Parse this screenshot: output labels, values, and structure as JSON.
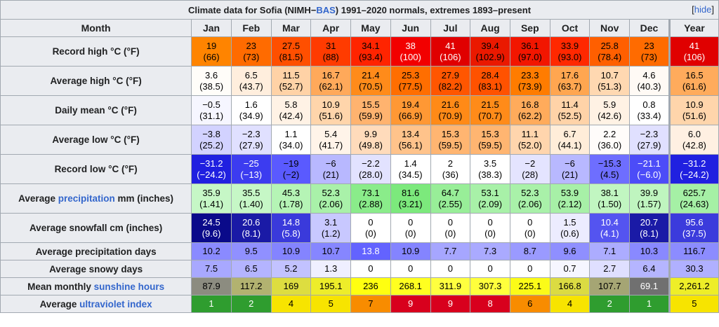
{
  "caption": {
    "prefix": "Climate data for Sofia (NIMH−",
    "link": "BAS",
    "suffix": ") 1991–2020 normals, extremes 1893–present",
    "hide_open": "[",
    "hide_label": "hide",
    "hide_close": "]"
  },
  "header": {
    "month_label": "Month",
    "months": [
      "Jan",
      "Feb",
      "Mar",
      "Apr",
      "May",
      "Jun",
      "Jul",
      "Aug",
      "Sep",
      "Oct",
      "Nov",
      "Dec"
    ],
    "year_label": "Year"
  },
  "rows": [
    {
      "label_pre": "Record high °C (°F)",
      "label_link": "",
      "label_post": "",
      "kind": "tall",
      "cells": [
        {
          "v": "19",
          "s": "(66)",
          "bg": "#ff8400",
          "fg": "#000000"
        },
        {
          "v": "23",
          "s": "(73)",
          "bg": "#ff6b00",
          "fg": "#000000"
        },
        {
          "v": "27.5",
          "s": "(81.5)",
          "bg": "#ff4f00",
          "fg": "#000000"
        },
        {
          "v": "31",
          "s": "(88)",
          "bg": "#ff3b00",
          "fg": "#000000"
        },
        {
          "v": "34.1",
          "s": "(93.4)",
          "bg": "#ff2400",
          "fg": "#000000"
        },
        {
          "v": "38",
          "s": "(100)",
          "bg": "#f20000",
          "fg": "#ffffff"
        },
        {
          "v": "41",
          "s": "(106)",
          "bg": "#e00000",
          "fg": "#ffffff"
        },
        {
          "v": "39.4",
          "s": "(102.9)",
          "bg": "#ea1900",
          "fg": "#000000"
        },
        {
          "v": "36.1",
          "s": "(97.0)",
          "bg": "#f21600",
          "fg": "#000000"
        },
        {
          "v": "33.9",
          "s": "(93.0)",
          "bg": "#ff2800",
          "fg": "#000000"
        },
        {
          "v": "25.8",
          "s": "(78.4)",
          "bg": "#ff5f00",
          "fg": "#000000"
        },
        {
          "v": "23",
          "s": "(73)",
          "bg": "#ff6b00",
          "fg": "#000000"
        },
        {
          "v": "41",
          "s": "(106)",
          "bg": "#e00000",
          "fg": "#ffffff"
        }
      ]
    },
    {
      "label_pre": "Average high °C (°F)",
      "label_link": "",
      "label_post": "",
      "kind": "tall",
      "cells": [
        {
          "v": "3.6",
          "s": "(38.5)",
          "bg": "#fffdf9",
          "fg": "#000000"
        },
        {
          "v": "6.5",
          "s": "(43.7)",
          "bg": "#ffeedd",
          "fg": "#000000"
        },
        {
          "v": "11.5",
          "s": "(52.7)",
          "bg": "#ffd2a6",
          "fg": "#000000"
        },
        {
          "v": "16.7",
          "s": "(62.1)",
          "bg": "#ffa95a",
          "fg": "#000000"
        },
        {
          "v": "21.4",
          "s": "(70.5)",
          "bg": "#ff8b1a",
          "fg": "#000000"
        },
        {
          "v": "25.3",
          "s": "(77.5)",
          "bg": "#ff6e00",
          "fg": "#000000"
        },
        {
          "v": "27.9",
          "s": "(82.2)",
          "bg": "#ff5600",
          "fg": "#000000"
        },
        {
          "v": "28.4",
          "s": "(83.1)",
          "bg": "#ff5200",
          "fg": "#000000"
        },
        {
          "v": "23.3",
          "s": "(73.9)",
          "bg": "#ff7c00",
          "fg": "#000000"
        },
        {
          "v": "17.6",
          "s": "(63.7)",
          "bg": "#ffa650",
          "fg": "#000000"
        },
        {
          "v": "10.7",
          "s": "(51.3)",
          "bg": "#ffd8b1",
          "fg": "#000000"
        },
        {
          "v": "4.6",
          "s": "(40.3)",
          "bg": "#fffaf5",
          "fg": "#000000"
        },
        {
          "v": "16.5",
          "s": "(61.6)",
          "bg": "#ffab5c",
          "fg": "#000000"
        }
      ]
    },
    {
      "label_pre": "Daily mean °C (°F)",
      "label_link": "",
      "label_post": "",
      "kind": "tall",
      "cells": [
        {
          "v": "−0.5",
          "s": "(31.1)",
          "bg": "#f6f6ff",
          "fg": "#000000"
        },
        {
          "v": "1.6",
          "s": "(34.9)",
          "bg": "#ffffff",
          "fg": "#000000"
        },
        {
          "v": "5.8",
          "s": "(42.4)",
          "bg": "#fff2e5",
          "fg": "#000000"
        },
        {
          "v": "10.9",
          "s": "(51.6)",
          "bg": "#ffd5ab",
          "fg": "#000000"
        },
        {
          "v": "15.5",
          "s": "(59.9)",
          "bg": "#ffb36f",
          "fg": "#000000"
        },
        {
          "v": "19.4",
          "s": "(66.9)",
          "bg": "#ff9834",
          "fg": "#000000"
        },
        {
          "v": "21.6",
          "s": "(70.9)",
          "bg": "#ff8a17",
          "fg": "#000000"
        },
        {
          "v": "21.5",
          "s": "(70.7)",
          "bg": "#ff8b19",
          "fg": "#000000"
        },
        {
          "v": "16.8",
          "s": "(62.2)",
          "bg": "#ffab5b",
          "fg": "#000000"
        },
        {
          "v": "11.4",
          "s": "(52.5)",
          "bg": "#ffd3a8",
          "fg": "#000000"
        },
        {
          "v": "5.9",
          "s": "(42.6)",
          "bg": "#fff2e4",
          "fg": "#000000"
        },
        {
          "v": "0.8",
          "s": "(33.4)",
          "bg": "#ffffff",
          "fg": "#000000"
        },
        {
          "v": "10.9",
          "s": "(51.6)",
          "bg": "#ffd5ab",
          "fg": "#000000"
        }
      ]
    },
    {
      "label_pre": "Average low °C (°F)",
      "label_link": "",
      "label_post": "",
      "kind": "tall",
      "cells": [
        {
          "v": "−3.8",
          "s": "(25.2)",
          "bg": "#d2d2ff",
          "fg": "#000000"
        },
        {
          "v": "−2.3",
          "s": "(27.9)",
          "bg": "#e0e0ff",
          "fg": "#000000"
        },
        {
          "v": "1.1",
          "s": "(34.0)",
          "bg": "#ffffff",
          "fg": "#000000"
        },
        {
          "v": "5.4",
          "s": "(41.7)",
          "bg": "#fff4e9",
          "fg": "#000000"
        },
        {
          "v": "9.9",
          "s": "(49.8)",
          "bg": "#ffdbbb",
          "fg": "#000000"
        },
        {
          "v": "13.4",
          "s": "(56.1)",
          "bg": "#ffc38b",
          "fg": "#000000"
        },
        {
          "v": "15.3",
          "s": "(59.5)",
          "bg": "#ffb571",
          "fg": "#000000"
        },
        {
          "v": "15.3",
          "s": "(59.5)",
          "bg": "#ffb571",
          "fg": "#000000"
        },
        {
          "v": "11.1",
          "s": "(52.0)",
          "bg": "#ffd5ad",
          "fg": "#000000"
        },
        {
          "v": "6.7",
          "s": "(44.1)",
          "bg": "#ffedd9",
          "fg": "#000000"
        },
        {
          "v": "2.2",
          "s": "(36.0)",
          "bg": "#fffcfa",
          "fg": "#000000"
        },
        {
          "v": "−2.3",
          "s": "(27.9)",
          "bg": "#e0e0ff",
          "fg": "#000000"
        },
        {
          "v": "6.0",
          "s": "(42.8)",
          "bg": "#fff0e2",
          "fg": "#000000"
        }
      ]
    },
    {
      "label_pre": "Record low °C (°F)",
      "label_link": "",
      "label_post": "",
      "kind": "tall",
      "cells": [
        {
          "v": "−31.2",
          "s": "(−24.2)",
          "bg": "#2020e0",
          "fg": "#ffffff"
        },
        {
          "v": "−25",
          "s": "(−13)",
          "bg": "#3c3cf0",
          "fg": "#ffffff"
        },
        {
          "v": "−19",
          "s": "(−2)",
          "bg": "#5a5aff",
          "fg": "#000000"
        },
        {
          "v": "−6",
          "s": "(21)",
          "bg": "#b8b8ff",
          "fg": "#000000"
        },
        {
          "v": "−2.2",
          "s": "(28.0)",
          "bg": "#e2e2ff",
          "fg": "#000000"
        },
        {
          "v": "1.4",
          "s": "(34.5)",
          "bg": "#ffffff",
          "fg": "#000000"
        },
        {
          "v": "2",
          "s": "(36)",
          "bg": "#ffffff",
          "fg": "#000000"
        },
        {
          "v": "3.5",
          "s": "(38.3)",
          "bg": "#ffffff",
          "fg": "#000000"
        },
        {
          "v": "−2",
          "s": "(28)",
          "bg": "#e4e4ff",
          "fg": "#000000"
        },
        {
          "v": "−6",
          "s": "(21)",
          "bg": "#b8b8ff",
          "fg": "#000000"
        },
        {
          "v": "−15.3",
          "s": "(4.5)",
          "bg": "#6e6eff",
          "fg": "#000000"
        },
        {
          "v": "−21.1",
          "s": "(−6.0)",
          "bg": "#4c4cf8",
          "fg": "#ffffff"
        },
        {
          "v": "−31.2",
          "s": "(−24.2)",
          "bg": "#2020e0",
          "fg": "#ffffff"
        }
      ]
    },
    {
      "label_pre": "Average ",
      "label_link": "precipitation",
      "label_post": " mm (inches)",
      "kind": "tall",
      "sep": true,
      "cells": [
        {
          "v": "35.9",
          "s": "(1.41)",
          "bg": "#c6f7c6",
          "fg": "#000000"
        },
        {
          "v": "35.5",
          "s": "(1.40)",
          "bg": "#c6f7c6",
          "fg": "#000000"
        },
        {
          "v": "45.3",
          "s": "(1.78)",
          "bg": "#b5f4b5",
          "fg": "#000000"
        },
        {
          "v": "52.3",
          "s": "(2.06)",
          "bg": "#a9f1a9",
          "fg": "#000000"
        },
        {
          "v": "73.1",
          "s": "(2.88)",
          "bg": "#8aec8a",
          "fg": "#000000"
        },
        {
          "v": "81.6",
          "s": "(3.21)",
          "bg": "#7ce97c",
          "fg": "#000000"
        },
        {
          "v": "64.7",
          "s": "(2.55)",
          "bg": "#98ee98",
          "fg": "#000000"
        },
        {
          "v": "53.1",
          "s": "(2.09)",
          "bg": "#a8f1a8",
          "fg": "#000000"
        },
        {
          "v": "52.3",
          "s": "(2.06)",
          "bg": "#a9f1a9",
          "fg": "#000000"
        },
        {
          "v": "53.9",
          "s": "(2.12)",
          "bg": "#a7f0a7",
          "fg": "#000000"
        },
        {
          "v": "38.1",
          "s": "(1.50)",
          "bg": "#c1f6c1",
          "fg": "#000000"
        },
        {
          "v": "39.9",
          "s": "(1.57)",
          "bg": "#bff5bf",
          "fg": "#000000"
        },
        {
          "v": "625.7",
          "s": "(24.63)",
          "bg": "#a5f0a5",
          "fg": "#000000"
        }
      ]
    },
    {
      "label_pre": "Average snowfall cm (inches)",
      "label_link": "",
      "label_post": "",
      "kind": "tall",
      "cells": [
        {
          "v": "24.5",
          "s": "(9.6)",
          "bg": "#0a0a8a",
          "fg": "#ffffff"
        },
        {
          "v": "20.6",
          "s": "(8.1)",
          "bg": "#1a1aa6",
          "fg": "#ffffff"
        },
        {
          "v": "14.8",
          "s": "(5.8)",
          "bg": "#3a3adb",
          "fg": "#ffffff"
        },
        {
          "v": "3.1",
          "s": "(1.2)",
          "bg": "#c8c8ff",
          "fg": "#000000"
        },
        {
          "v": "0",
          "s": "(0)",
          "bg": "#ffffff",
          "fg": "#000000"
        },
        {
          "v": "0",
          "s": "(0)",
          "bg": "#ffffff",
          "fg": "#000000"
        },
        {
          "v": "0",
          "s": "(0)",
          "bg": "#ffffff",
          "fg": "#000000"
        },
        {
          "v": "0",
          "s": "(0)",
          "bg": "#ffffff",
          "fg": "#000000"
        },
        {
          "v": "0",
          "s": "(0)",
          "bg": "#ffffff",
          "fg": "#000000"
        },
        {
          "v": "1.5",
          "s": "(0.6)",
          "bg": "#ececff",
          "fg": "#000000"
        },
        {
          "v": "10.4",
          "s": "(4.1)",
          "bg": "#5454f0",
          "fg": "#ffffff"
        },
        {
          "v": "20.7",
          "s": "(8.1)",
          "bg": "#1a1aa6",
          "fg": "#ffffff"
        },
        {
          "v": "95.6",
          "s": "(37.5)",
          "bg": "#3b3bdc",
          "fg": "#ffffff"
        }
      ]
    },
    {
      "label_pre": "Average precipitation days",
      "label_link": "",
      "label_post": "",
      "kind": "short",
      "cells": [
        {
          "v": "10.2",
          "s": "",
          "bg": "#8a8aff",
          "fg": "#000000"
        },
        {
          "v": "9.5",
          "s": "",
          "bg": "#9090ff",
          "fg": "#000000"
        },
        {
          "v": "10.9",
          "s": "",
          "bg": "#8484ff",
          "fg": "#000000"
        },
        {
          "v": "10.7",
          "s": "",
          "bg": "#8686ff",
          "fg": "#000000"
        },
        {
          "v": "13.8",
          "s": "",
          "bg": "#6363ff",
          "fg": "#ffffff"
        },
        {
          "v": "10.9",
          "s": "",
          "bg": "#8484ff",
          "fg": "#000000"
        },
        {
          "v": "7.7",
          "s": "",
          "bg": "#a6a6ff",
          "fg": "#000000"
        },
        {
          "v": "7.3",
          "s": "",
          "bg": "#aaaaff",
          "fg": "#000000"
        },
        {
          "v": "8.7",
          "s": "",
          "bg": "#9a9aff",
          "fg": "#000000"
        },
        {
          "v": "9.6",
          "s": "",
          "bg": "#8f8fff",
          "fg": "#000000"
        },
        {
          "v": "7.1",
          "s": "",
          "bg": "#acacff",
          "fg": "#000000"
        },
        {
          "v": "10.3",
          "s": "",
          "bg": "#8989ff",
          "fg": "#000000"
        },
        {
          "v": "116.7",
          "s": "",
          "bg": "#8c8cff",
          "fg": "#000000"
        }
      ]
    },
    {
      "label_pre": "Average snowy days",
      "label_link": "",
      "label_post": "",
      "kind": "short",
      "cells": [
        {
          "v": "7.5",
          "s": "",
          "bg": "#a8a8ff",
          "fg": "#000000"
        },
        {
          "v": "6.5",
          "s": "",
          "bg": "#b4b4ff",
          "fg": "#000000"
        },
        {
          "v": "5.2",
          "s": "",
          "bg": "#c2c2ff",
          "fg": "#000000"
        },
        {
          "v": "1.3",
          "s": "",
          "bg": "#efefff",
          "fg": "#000000"
        },
        {
          "v": "0",
          "s": "",
          "bg": "#ffffff",
          "fg": "#000000"
        },
        {
          "v": "0",
          "s": "",
          "bg": "#ffffff",
          "fg": "#000000"
        },
        {
          "v": "0",
          "s": "",
          "bg": "#ffffff",
          "fg": "#000000"
        },
        {
          "v": "0",
          "s": "",
          "bg": "#ffffff",
          "fg": "#000000"
        },
        {
          "v": "0",
          "s": "",
          "bg": "#ffffff",
          "fg": "#000000"
        },
        {
          "v": "0.7",
          "s": "",
          "bg": "#f6f6ff",
          "fg": "#000000"
        },
        {
          "v": "2.7",
          "s": "",
          "bg": "#dfdfff",
          "fg": "#000000"
        },
        {
          "v": "6.4",
          "s": "",
          "bg": "#b5b5ff",
          "fg": "#000000"
        },
        {
          "v": "30.3",
          "s": "",
          "bg": "#b0b0ff",
          "fg": "#000000"
        }
      ]
    },
    {
      "label_pre": "Mean monthly ",
      "label_link": "sunshine hours",
      "label_post": "",
      "kind": "short",
      "sep": true,
      "cells": [
        {
          "v": "87.9",
          "s": "",
          "bg": "#8c8c80",
          "fg": "#000000"
        },
        {
          "v": "117.2",
          "s": "",
          "bg": "#b2b270",
          "fg": "#000000"
        },
        {
          "v": "169",
          "s": "",
          "bg": "#dddd40",
          "fg": "#000000"
        },
        {
          "v": "195.1",
          "s": "",
          "bg": "#eded2a",
          "fg": "#000000"
        },
        {
          "v": "236",
          "s": "",
          "bg": "#ffff10",
          "fg": "#000000"
        },
        {
          "v": "268.1",
          "s": "",
          "bg": "#ffff20",
          "fg": "#000000"
        },
        {
          "v": "311.9",
          "s": "",
          "bg": "#ffff3f",
          "fg": "#000000"
        },
        {
          "v": "307.3",
          "s": "",
          "bg": "#ffff3c",
          "fg": "#000000"
        },
        {
          "v": "225.1",
          "s": "",
          "bg": "#fbfb18",
          "fg": "#000000"
        },
        {
          "v": "166.8",
          "s": "",
          "bg": "#dbdb42",
          "fg": "#000000"
        },
        {
          "v": "107.7",
          "s": "",
          "bg": "#a5a574",
          "fg": "#000000"
        },
        {
          "v": "69.1",
          "s": "",
          "bg": "#707070",
          "fg": "#ffffff"
        },
        {
          "v": "2,261.2",
          "s": "",
          "bg": "#eeee28",
          "fg": "#000000"
        }
      ]
    },
    {
      "label_pre": "Average ",
      "label_link": "ultraviolet index",
      "label_post": "",
      "kind": "short",
      "cells": [
        {
          "v": "1",
          "s": "",
          "bg": "#2f9d2f",
          "fg": "#ffffff"
        },
        {
          "v": "2",
          "s": "",
          "bg": "#2f9d2f",
          "fg": "#ffffff"
        },
        {
          "v": "4",
          "s": "",
          "bg": "#f7e400",
          "fg": "#000000"
        },
        {
          "v": "5",
          "s": "",
          "bg": "#f7e400",
          "fg": "#000000"
        },
        {
          "v": "7",
          "s": "",
          "bg": "#f88c00",
          "fg": "#000000"
        },
        {
          "v": "9",
          "s": "",
          "bg": "#d8001d",
          "fg": "#ffffff"
        },
        {
          "v": "9",
          "s": "",
          "bg": "#d8001d",
          "fg": "#ffffff"
        },
        {
          "v": "8",
          "s": "",
          "bg": "#d8001d",
          "fg": "#ffffff"
        },
        {
          "v": "6",
          "s": "",
          "bg": "#f88c00",
          "fg": "#000000"
        },
        {
          "v": "4",
          "s": "",
          "bg": "#f7e400",
          "fg": "#000000"
        },
        {
          "v": "2",
          "s": "",
          "bg": "#2f9d2f",
          "fg": "#ffffff"
        },
        {
          "v": "1",
          "s": "",
          "bg": "#2f9d2f",
          "fg": "#ffffff"
        },
        {
          "v": "5",
          "s": "",
          "bg": "#f7e400",
          "fg": "#000000"
        }
      ]
    }
  ]
}
